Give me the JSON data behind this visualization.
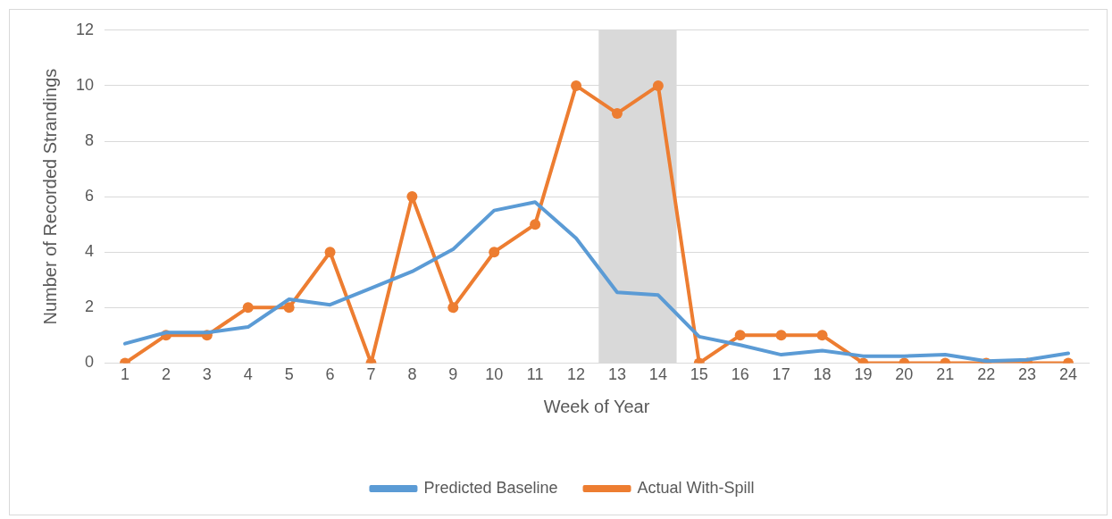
{
  "chart_data": {
    "type": "line",
    "xlabel": "Week of Year",
    "ylabel": "Number of Recorded Strandings",
    "x": [
      1,
      2,
      3,
      4,
      5,
      6,
      7,
      8,
      9,
      10,
      11,
      12,
      13,
      14,
      15,
      16,
      17,
      18,
      19,
      20,
      21,
      22,
      23,
      24
    ],
    "xlim": [
      0.5,
      24.5
    ],
    "xticks": [
      1,
      2,
      3,
      4,
      5,
      6,
      7,
      8,
      9,
      10,
      11,
      12,
      13,
      14,
      15,
      16,
      17,
      18,
      19,
      20,
      21,
      22,
      23,
      24
    ],
    "ylim": [
      0,
      12
    ],
    "yticks": [
      0,
      2,
      4,
      6,
      8,
      10,
      12
    ],
    "grid": "y",
    "legend": "bottom",
    "line_style": "solid",
    "bands": [
      {
        "axis": "x",
        "from": 12.55,
        "to": 14.45,
        "color": "#d9d9d9"
      }
    ],
    "series": [
      {
        "name": "Predicted Baseline",
        "color": "#5b9bd5",
        "marker": "none",
        "values": [
          0.7,
          1.1,
          1.1,
          1.3,
          2.3,
          2.1,
          2.7,
          3.3,
          4.1,
          5.5,
          5.8,
          4.5,
          2.55,
          2.45,
          0.95,
          0.65,
          0.3,
          0.45,
          0.25,
          0.25,
          0.3,
          0.07,
          0.12,
          0.35
        ]
      },
      {
        "name": "Actual With-Spill",
        "color": "#ed7d31",
        "marker": "circle",
        "values": [
          0,
          1,
          1,
          2,
          2,
          4,
          0,
          6,
          2,
          4,
          5,
          10,
          9,
          10,
          0,
          1,
          1,
          1,
          0,
          0,
          0,
          0,
          0,
          0
        ]
      }
    ]
  }
}
